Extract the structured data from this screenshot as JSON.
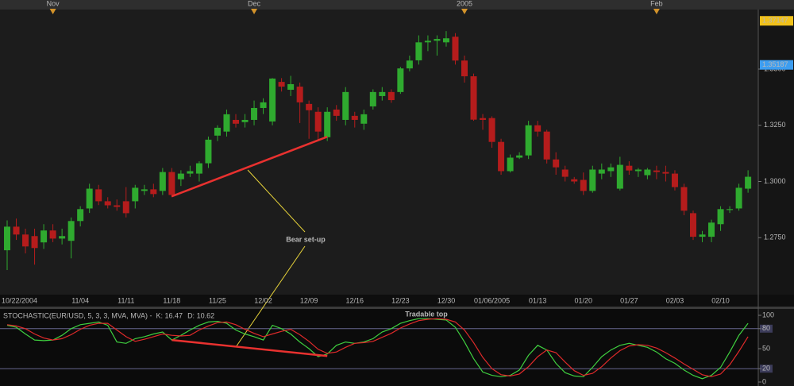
{
  "chart_data": [
    {
      "type": "candlestick",
      "categories": [
        null,
        "10/22/2004",
        null,
        null,
        null,
        null,
        null,
        null,
        "11/04",
        null,
        null,
        null,
        null,
        "11/11",
        null,
        null,
        null,
        null,
        "11/18",
        null,
        null,
        null,
        null,
        "11/25",
        null,
        null,
        null,
        null,
        "12/02",
        null,
        null,
        null,
        null,
        "12/09",
        null,
        null,
        null,
        null,
        "12/16",
        null,
        null,
        null,
        null,
        "12/23",
        null,
        null,
        null,
        null,
        "12/30",
        null,
        null,
        null,
        null,
        "01/06/2005",
        null,
        null,
        null,
        null,
        "01/13",
        null,
        null,
        null,
        null,
        "01/20",
        null,
        null,
        null,
        null,
        "01/27",
        null,
        null,
        null,
        null,
        "02/03",
        null,
        null,
        null,
        null,
        "02/10",
        null,
        null,
        null
      ],
      "month_markers": [
        null,
        null,
        null,
        null,
        null,
        "Nov",
        null,
        null,
        null,
        null,
        null,
        null,
        null,
        null,
        null,
        null,
        null,
        null,
        null,
        null,
        null,
        null,
        null,
        null,
        null,
        null,
        null,
        "Dec",
        null,
        null,
        null,
        null,
        null,
        null,
        null,
        null,
        null,
        null,
        null,
        null,
        null,
        null,
        null,
        null,
        null,
        null,
        null,
        null,
        null,
        null,
        "2005",
        null,
        null,
        null,
        null,
        null,
        null,
        null,
        null,
        null,
        null,
        null,
        null,
        null,
        null,
        null,
        null,
        null,
        null,
        null,
        null,
        "Feb",
        null,
        null,
        null,
        null,
        null,
        null,
        null,
        null,
        null,
        null
      ],
      "open": [
        1.2694,
        1.2799,
        1.2764,
        1.2757,
        1.2729,
        1.2782,
        1.2746,
        1.2736,
        1.2824,
        1.288,
        1.2965,
        1.2912,
        1.2894,
        1.2912,
        1.2912,
        1.2958,
        1.2965,
        1.2958,
        1.3042,
        1.301,
        1.3035,
        1.3035,
        1.3081,
        1.3204,
        1.3222,
        1.3274,
        1.3264,
        1.3274,
        1.3327,
        1.3267,
        1.3443,
        1.3408,
        1.3422,
        1.3345,
        1.331,
        1.3197,
        1.332,
        1.3274,
        1.3292,
        1.3257,
        1.3334,
        1.338,
        1.3398,
        1.3398,
        1.3503,
        1.3539,
        1.3619,
        1.3626,
        1.3619,
        1.3644,
        1.3538,
        1.3468,
        1.3282,
        1.3282,
        1.3176,
        1.3046,
        1.3106,
        1.3116,
        1.325,
        1.3222,
        1.3098,
        1.3053,
        1.301,
        1.3007,
        1.2958,
        1.3035,
        1.3046,
        1.2968,
        1.307,
        1.3046,
        1.3028,
        1.3049,
        1.3042,
        1.3035,
        1.2975,
        1.2859,
        1.2754,
        1.2754,
        1.281,
        1.2873,
        1.288,
        1.2968
      ],
      "high": [
        1.2827,
        1.2835,
        1.279,
        1.279,
        1.281,
        1.281,
        1.279,
        1.284,
        1.289,
        1.299,
        1.2985,
        1.293,
        1.292,
        1.2975,
        1.2985,
        1.2985,
        1.299,
        1.306,
        1.306,
        1.305,
        1.307,
        1.309,
        1.32,
        1.325,
        1.332,
        1.33,
        1.33,
        1.336,
        1.337,
        1.346,
        1.346,
        1.347,
        1.344,
        1.336,
        1.333,
        1.333,
        1.334,
        1.342,
        1.331,
        1.332,
        1.341,
        1.342,
        1.341,
        1.351,
        1.356,
        1.365,
        1.365,
        1.365,
        1.3669,
        1.366,
        1.356,
        1.348,
        1.33,
        1.329,
        1.319,
        1.312,
        1.313,
        1.327,
        1.327,
        1.323,
        1.313,
        1.307,
        1.302,
        1.304,
        1.307,
        1.308,
        1.308,
        1.311,
        1.309,
        1.306,
        1.306,
        1.307,
        1.307,
        1.305,
        1.299,
        1.287,
        1.278,
        1.283,
        1.289,
        1.289,
        1.299,
        1.305
      ],
      "low": [
        1.2606,
        1.274,
        1.268,
        1.263,
        1.27,
        1.273,
        1.272,
        1.2658,
        1.28,
        1.286,
        1.2895,
        1.288,
        1.287,
        1.284,
        1.288,
        1.294,
        1.293,
        1.294,
        1.293,
        1.298,
        1.302,
        1.3,
        1.306,
        1.318,
        1.32,
        1.324,
        1.324,
        1.325,
        1.33,
        1.325,
        1.34,
        1.338,
        1.326,
        1.319,
        1.318,
        1.318,
        1.327,
        1.325,
        1.324,
        1.323,
        1.332,
        1.336,
        1.335,
        1.339,
        1.349,
        1.352,
        1.358,
        1.356,
        1.36,
        1.352,
        1.344,
        1.327,
        1.323,
        1.315,
        1.303,
        1.304,
        1.31,
        1.31,
        1.32,
        1.308,
        1.303,
        1.3,
        1.299,
        1.294,
        1.295,
        1.301,
        1.302,
        1.296,
        1.303,
        1.302,
        1.301,
        1.301,
        1.3,
        1.296,
        1.285,
        1.274,
        1.273,
        1.273,
        1.278,
        1.286,
        1.287,
        1.295
      ],
      "close": [
        1.2799,
        1.2764,
        1.2711,
        1.2704,
        1.2782,
        1.2746,
        1.2757,
        1.2824,
        1.2877,
        1.2968,
        1.2912,
        1.2894,
        1.2887,
        1.2859,
        1.2972,
        1.2965,
        1.2944,
        1.3042,
        1.294,
        1.3035,
        1.3046,
        1.3081,
        1.3186,
        1.3239,
        1.3299,
        1.3257,
        1.3274,
        1.3327,
        1.3352,
        1.3458,
        1.3422,
        1.3433,
        1.3352,
        1.3317,
        1.3222,
        1.331,
        1.3292,
        1.3398,
        1.3274,
        1.3299,
        1.3398,
        1.3398,
        1.3362,
        1.3503,
        1.3538,
        1.3619,
        1.3626,
        1.3634,
        1.3637,
        1.3538,
        1.3468,
        1.3275,
        1.3274,
        1.3176,
        1.3046,
        1.3106,
        1.3116,
        1.325,
        1.3222,
        1.3098,
        1.3063,
        1.3021,
        1.3,
        1.2958,
        1.3053,
        1.3053,
        1.3063,
        1.3074,
        1.3049,
        1.3053,
        1.3053,
        1.3042,
        1.3035,
        1.2975,
        1.287,
        1.2754,
        1.2764,
        1.2817,
        1.2877,
        1.2877,
        1.2972,
        1.3021
      ],
      "colors": {
        "up": "#2faa2f",
        "down": "#b51c1c"
      },
      "ylim": [
        1.25,
        1.3765
      ],
      "yticks": [
        {
          "value": 1.275,
          "label": "1.2750"
        },
        {
          "value": 1.3,
          "label": "1.3000"
        },
        {
          "value": 1.325,
          "label": "1.3250"
        },
        {
          "value": 1.35,
          "label": "1.3500"
        }
      ],
      "price_markers": [
        {
          "value": 1.37147,
          "color": "#f2c21a"
        },
        {
          "value": 1.35187,
          "color": "#3d9df0"
        }
      ],
      "trend_line": {
        "start": 18,
        "end": 35,
        "from": 1.2934,
        "to": 1.3199,
        "color": "#e8312f"
      },
      "annotation": "Bear set-up"
    },
    {
      "type": "line",
      "title": "STOCHASTIC(EUR/USD, 5, 3, 3, MVA, MVA) -",
      "series": [
        {
          "name": "K: 16.47",
          "color": "#3fcf3f",
          "values": [
            85,
            82,
            72,
            63,
            62,
            63,
            70,
            80,
            86,
            88,
            90,
            85,
            60,
            58,
            65,
            68,
            72,
            75,
            63,
            70,
            78,
            85,
            90,
            91,
            88,
            78,
            72,
            68,
            63,
            85,
            80,
            72,
            60,
            50,
            38,
            42,
            55,
            60,
            58,
            60,
            65,
            75,
            80,
            88,
            92,
            95,
            95,
            94,
            93,
            82,
            60,
            35,
            15,
            10,
            8,
            10,
            18,
            40,
            55,
            48,
            28,
            14,
            9,
            8,
            22,
            38,
            48,
            55,
            58,
            55,
            52,
            45,
            35,
            28,
            18,
            10,
            5,
            10,
            22,
            45,
            70,
            88
          ]
        },
        {
          "name": "D: 10.62",
          "color": "#e02a2a",
          "values": [
            86,
            84,
            80,
            72,
            66,
            63,
            65,
            71,
            79,
            85,
            88,
            88,
            78,
            68,
            61,
            64,
            68,
            72,
            70,
            69,
            70,
            78,
            84,
            89,
            90,
            86,
            79,
            73,
            68,
            72,
            76,
            79,
            71,
            61,
            49,
            43,
            45,
            52,
            58,
            59,
            61,
            67,
            73,
            81,
            87,
            92,
            94,
            95,
            94,
            90,
            78,
            59,
            37,
            20,
            11,
            9,
            12,
            23,
            38,
            48,
            44,
            30,
            17,
            10,
            13,
            23,
            36,
            47,
            54,
            56,
            55,
            51,
            44,
            36,
            27,
            19,
            11,
            8,
            12,
            26,
            46,
            68
          ]
        }
      ],
      "ylim": [
        0,
        100
      ],
      "yticks": [
        0,
        20,
        50,
        80,
        100
      ],
      "levels": [
        20,
        80
      ],
      "trend_line": {
        "start": 18,
        "end": 35,
        "from": 63,
        "to": 39,
        "color": "#e8312f"
      },
      "annotation": "Tradable top"
    }
  ]
}
